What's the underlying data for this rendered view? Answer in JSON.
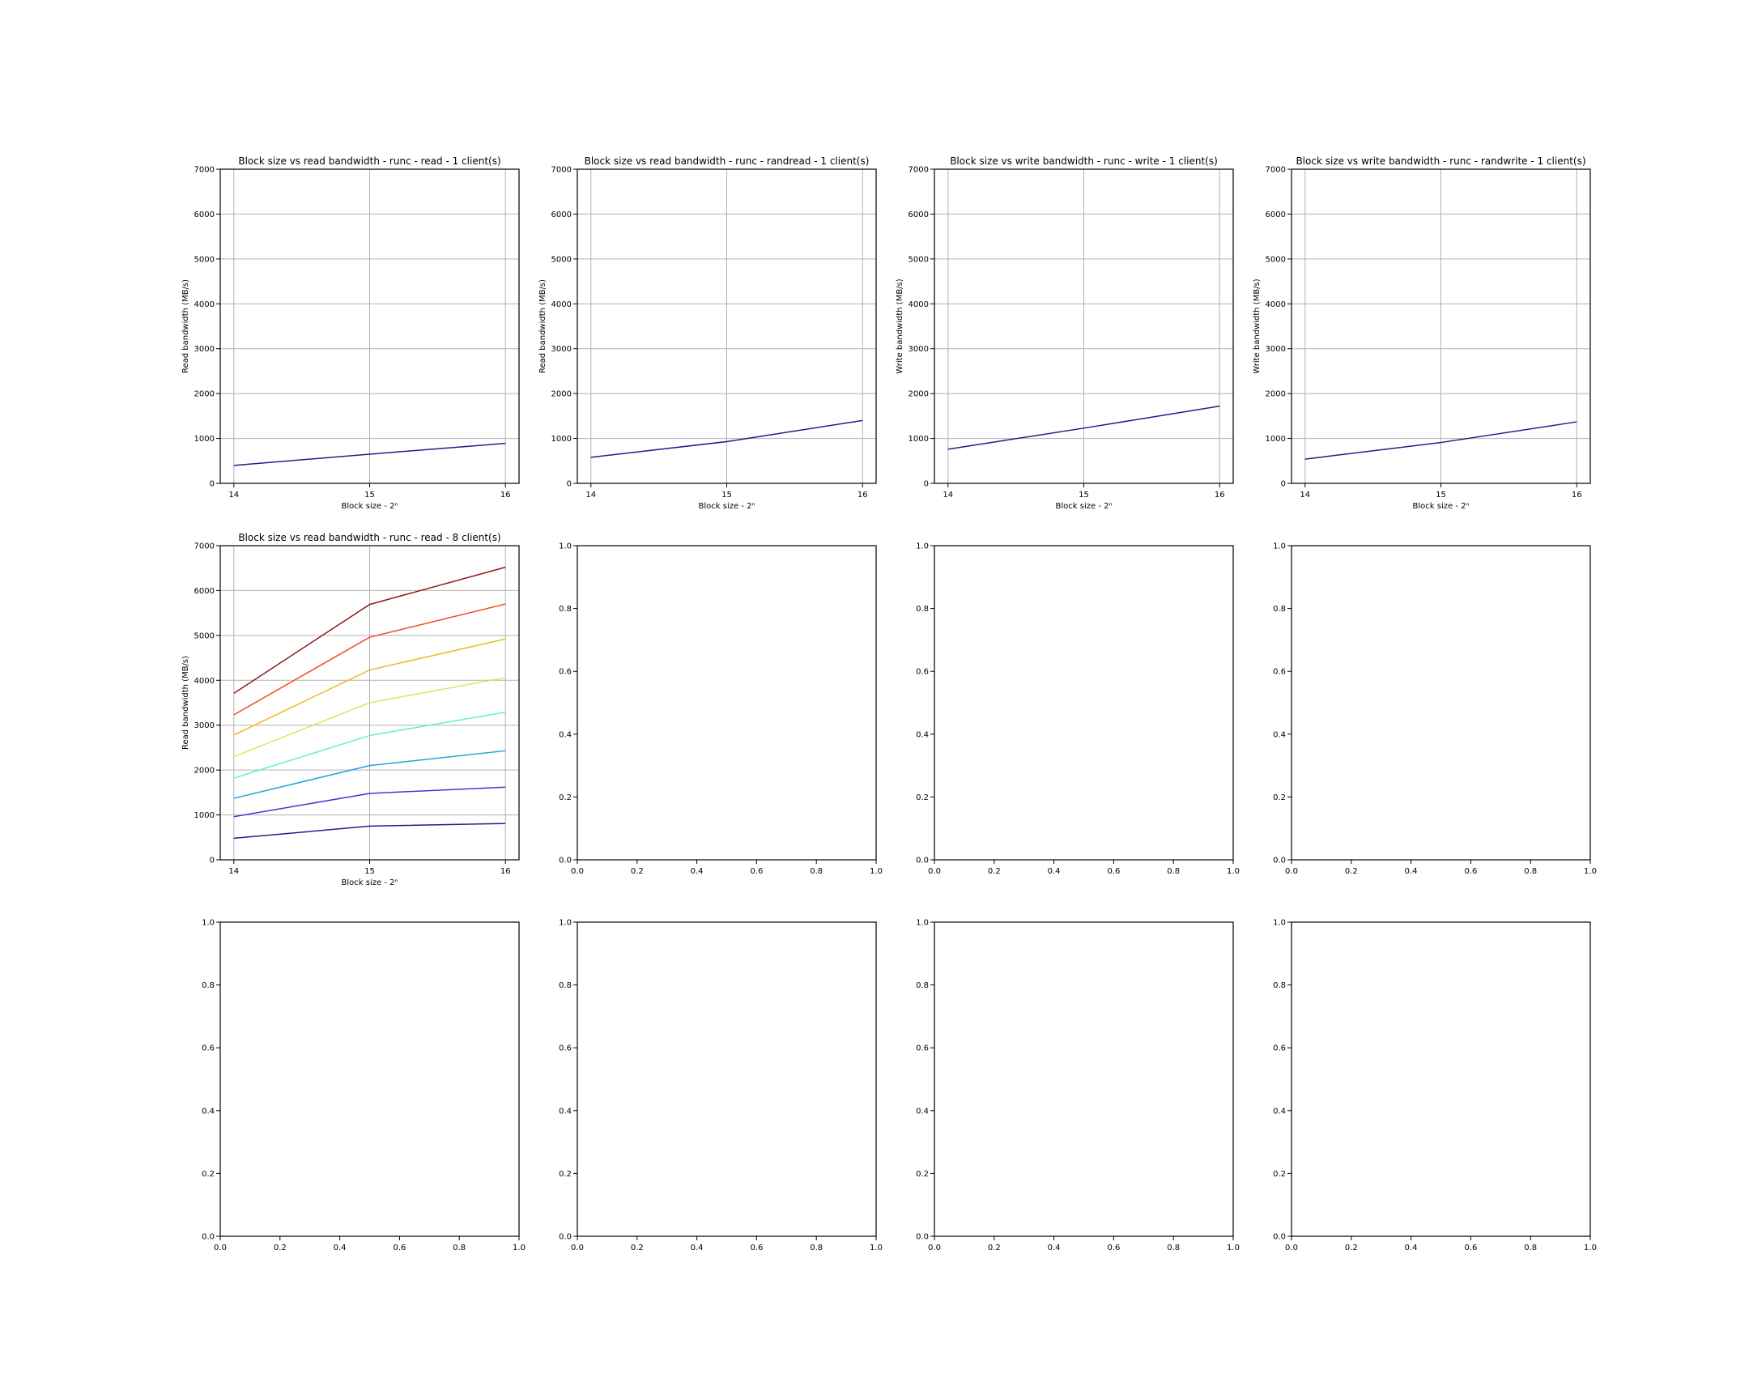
{
  "figure": {
    "background": "#ffffff",
    "grid_color": "#b0b0b0",
    "axis_color": "#000000"
  },
  "chart_data": [
    {
      "type": "line",
      "title": "Block size vs read bandwidth - runc - read - 1 client(s)",
      "xlabel": "Block size - 2ⁿ",
      "ylabel": "Read bandwidth (MB/s)",
      "grid": true,
      "x": [
        14,
        15,
        16
      ],
      "xlim": [
        13.9,
        16.1
      ],
      "ylim": [
        0,
        7000
      ],
      "xticks": [
        14,
        15,
        16
      ],
      "yticks": [
        0,
        1000,
        2000,
        3000,
        4000,
        5000,
        6000,
        7000
      ],
      "series": [
        {
          "values": [
            400,
            650,
            890
          ],
          "color": "#1f1f8a"
        }
      ]
    },
    {
      "type": "line",
      "title": "Block size vs read bandwidth - runc - randread - 1 client(s)",
      "xlabel": "Block size - 2ⁿ",
      "ylabel": "Read bandwidth (MB/s)",
      "grid": true,
      "x": [
        14,
        15,
        16
      ],
      "xlim": [
        13.9,
        16.1
      ],
      "ylim": [
        0,
        7000
      ],
      "xticks": [
        14,
        15,
        16
      ],
      "yticks": [
        0,
        1000,
        2000,
        3000,
        4000,
        5000,
        6000,
        7000
      ],
      "series": [
        {
          "values": [
            580,
            930,
            1400
          ],
          "color": "#1f1f8a"
        }
      ]
    },
    {
      "type": "line",
      "title": "Block size vs write bandwidth - runc - write - 1 client(s)",
      "xlabel": "Block size - 2ⁿ",
      "ylabel": "Write bandwidth (MB/s)",
      "grid": true,
      "x": [
        14,
        15,
        16
      ],
      "xlim": [
        13.9,
        16.1
      ],
      "ylim": [
        0,
        7000
      ],
      "xticks": [
        14,
        15,
        16
      ],
      "yticks": [
        0,
        1000,
        2000,
        3000,
        4000,
        5000,
        6000,
        7000
      ],
      "series": [
        {
          "values": [
            760,
            1230,
            1720
          ],
          "color": "#1f1f8a"
        }
      ]
    },
    {
      "type": "line",
      "title": "Block size vs write bandwidth - runc - randwrite - 1 client(s)",
      "xlabel": "Block size - 2ⁿ",
      "ylabel": "Write bandwidth (MB/s)",
      "grid": true,
      "x": [
        14,
        15,
        16
      ],
      "xlim": [
        13.9,
        16.1
      ],
      "ylim": [
        0,
        7000
      ],
      "xticks": [
        14,
        15,
        16
      ],
      "yticks": [
        0,
        1000,
        2000,
        3000,
        4000,
        5000,
        6000,
        7000
      ],
      "series": [
        {
          "values": [
            540,
            910,
            1370
          ],
          "color": "#1f1f8a"
        }
      ]
    },
    {
      "type": "line",
      "title": "Block size vs read bandwidth - runc - read - 8 client(s)",
      "xlabel": "Block size - 2ⁿ",
      "ylabel": "Read bandwidth (MB/s)",
      "grid": true,
      "x": [
        14,
        15,
        16
      ],
      "xlim": [
        13.9,
        16.1
      ],
      "ylim": [
        0,
        7000
      ],
      "xticks": [
        14,
        15,
        16
      ],
      "yticks": [
        0,
        1000,
        2000,
        3000,
        4000,
        5000,
        6000,
        7000
      ],
      "series": [
        {
          "values": [
            480,
            750,
            810
          ],
          "color": "#1f1f8a"
        },
        {
          "values": [
            960,
            1480,
            1620
          ],
          "color": "#3b3bd6"
        },
        {
          "values": [
            1370,
            2100,
            2430
          ],
          "color": "#1fa3d8"
        },
        {
          "values": [
            1820,
            2770,
            3290
          ],
          "color": "#5ef2d2"
        },
        {
          "values": [
            2300,
            3500,
            4060
          ],
          "color": "#c6f25a"
        },
        {
          "values": [
            2780,
            4230,
            4920
          ],
          "color": "#f2b824"
        },
        {
          "values": [
            3230,
            4960,
            5700
          ],
          "color": "#f04a22"
        },
        {
          "values": [
            3710,
            5690,
            6520
          ],
          "color": "#8c1a1a"
        }
      ]
    },
    {
      "type": "line",
      "empty": true,
      "xlim": [
        0,
        1
      ],
      "ylim": [
        0,
        1
      ],
      "xticks": [
        "0.0",
        "0.2",
        "0.4",
        "0.6",
        "0.8",
        "1.0"
      ],
      "yticks": [
        "0.0",
        "0.2",
        "0.4",
        "0.6",
        "0.8",
        "1.0"
      ]
    },
    {
      "type": "line",
      "empty": true,
      "xlim": [
        0,
        1
      ],
      "ylim": [
        0,
        1
      ],
      "xticks": [
        "0.0",
        "0.2",
        "0.4",
        "0.6",
        "0.8",
        "1.0"
      ],
      "yticks": [
        "0.0",
        "0.2",
        "0.4",
        "0.6",
        "0.8",
        "1.0"
      ]
    },
    {
      "type": "line",
      "empty": true,
      "xlim": [
        0,
        1
      ],
      "ylim": [
        0,
        1
      ],
      "xticks": [
        "0.0",
        "0.2",
        "0.4",
        "0.6",
        "0.8",
        "1.0"
      ],
      "yticks": [
        "0.0",
        "0.2",
        "0.4",
        "0.6",
        "0.8",
        "1.0"
      ]
    },
    {
      "type": "line",
      "empty": true,
      "xlim": [
        0,
        1
      ],
      "ylim": [
        0,
        1
      ],
      "xticks": [
        "0.0",
        "0.2",
        "0.4",
        "0.6",
        "0.8",
        "1.0"
      ],
      "yticks": [
        "0.0",
        "0.2",
        "0.4",
        "0.6",
        "0.8",
        "1.0"
      ]
    },
    {
      "type": "line",
      "empty": true,
      "xlim": [
        0,
        1
      ],
      "ylim": [
        0,
        1
      ],
      "xticks": [
        "0.0",
        "0.2",
        "0.4",
        "0.6",
        "0.8",
        "1.0"
      ],
      "yticks": [
        "0.0",
        "0.2",
        "0.4",
        "0.6",
        "0.8",
        "1.0"
      ]
    },
    {
      "type": "line",
      "empty": true,
      "xlim": [
        0,
        1
      ],
      "ylim": [
        0,
        1
      ],
      "xticks": [
        "0.0",
        "0.2",
        "0.4",
        "0.6",
        "0.8",
        "1.0"
      ],
      "yticks": [
        "0.0",
        "0.2",
        "0.4",
        "0.6",
        "0.8",
        "1.0"
      ]
    },
    {
      "type": "line",
      "empty": true,
      "xlim": [
        0,
        1
      ],
      "ylim": [
        0,
        1
      ],
      "xticks": [
        "0.0",
        "0.2",
        "0.4",
        "0.6",
        "0.8",
        "1.0"
      ],
      "yticks": [
        "0.0",
        "0.2",
        "0.4",
        "0.6",
        "0.8",
        "1.0"
      ]
    }
  ]
}
